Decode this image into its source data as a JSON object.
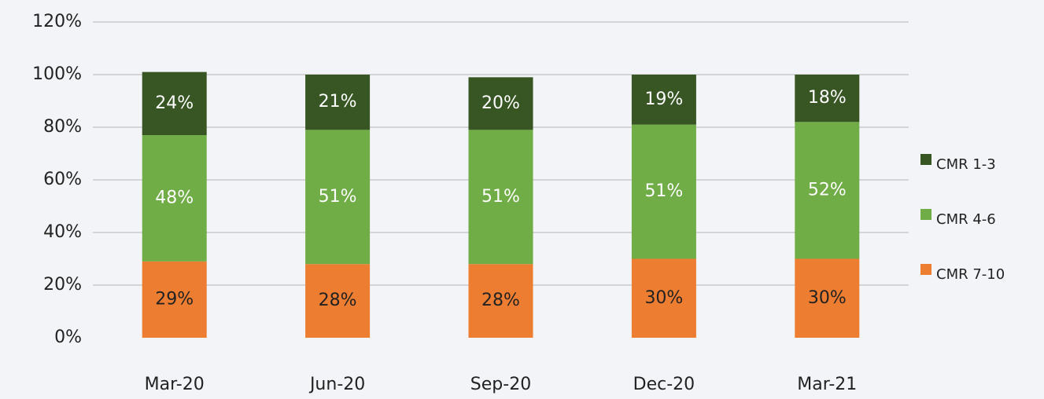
{
  "chart_data": {
    "type": "stacked_bar",
    "categories": [
      "Mar-20",
      "Jun-20",
      "Sep-20",
      "Dec-20",
      "Mar-21"
    ],
    "series": [
      {
        "name": "CMR 7-10",
        "color": "#ed7d31",
        "values": [
          29,
          28,
          28,
          30,
          30
        ],
        "value_labels": [
          "29%",
          "28%",
          "28%",
          "30%",
          "30%"
        ]
      },
      {
        "name": "CMR 4-6",
        "color": "#70ad47",
        "values": [
          48,
          51,
          51,
          51,
          52
        ],
        "value_labels": [
          "48%",
          "51%",
          "51%",
          "51%",
          "52%"
        ]
      },
      {
        "name": "CMR 1-3",
        "color": "#375623",
        "values": [
          24,
          21,
          20,
          19,
          18
        ],
        "value_labels": [
          "24%",
          "21%",
          "20%",
          "19%",
          "18%"
        ]
      }
    ],
    "ylim": [
      0,
      120
    ],
    "yticks": [
      {
        "value": 0,
        "label": "0%"
      },
      {
        "value": 20,
        "label": "20%"
      },
      {
        "value": 40,
        "label": "40%"
      },
      {
        "value": 60,
        "label": "60%"
      },
      {
        "value": 80,
        "label": "80%"
      },
      {
        "value": 100,
        "label": "100%"
      },
      {
        "value": 120,
        "label": "120%"
      }
    ],
    "grid": true,
    "legend": "right"
  }
}
